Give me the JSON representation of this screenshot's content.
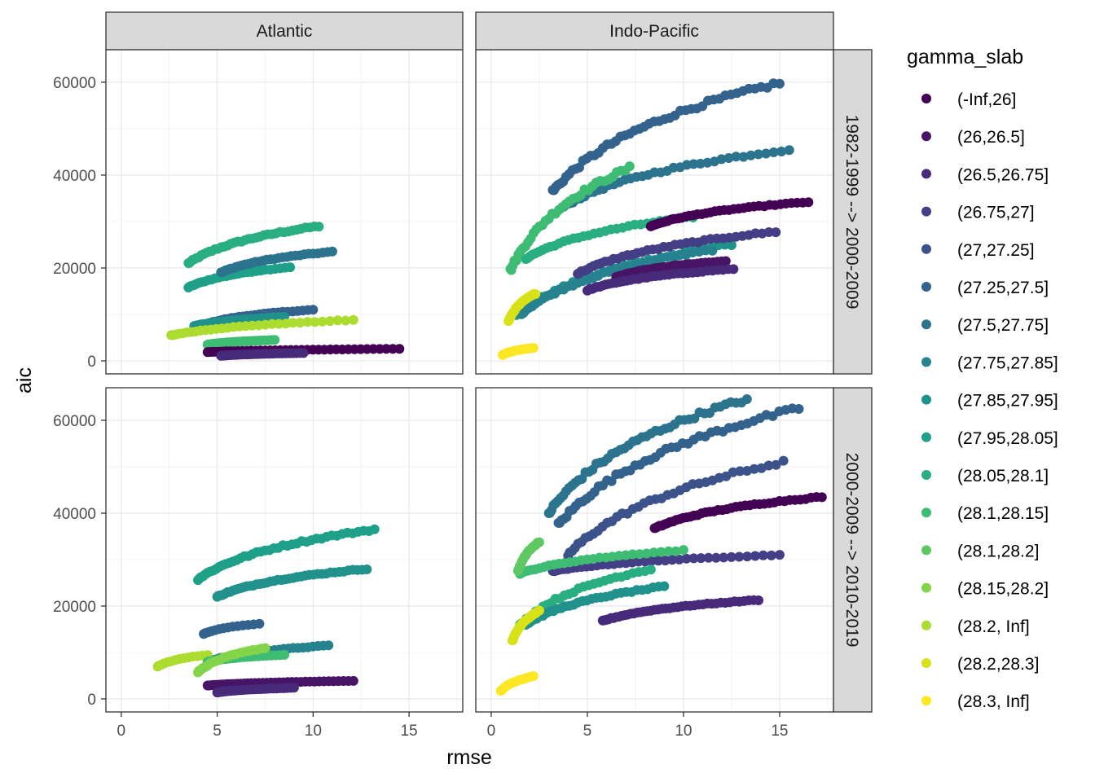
{
  "chart_data": {
    "type": "scatter",
    "xlabel": "rmse",
    "ylabel": "aic",
    "xlim": [
      -0.8,
      17.8
    ],
    "ylim": [
      -2800,
      67000
    ],
    "x_ticks": [
      0,
      5,
      10,
      15
    ],
    "y_ticks": [
      0,
      20000,
      40000,
      60000
    ],
    "grid": true,
    "legend_position": "right",
    "facet_columns": [
      "Atlantic",
      "Indo-Pacific"
    ],
    "facet_rows": [
      "1982-1999 --> 2000-2009",
      "2000-2009 --> 2010-2019"
    ],
    "legend": {
      "title": "gamma_slab",
      "items": [
        {
          "label": "(-Inf,26]",
          "color": "#440154"
        },
        {
          "label": "(26,26.5]",
          "color": "#471466"
        },
        {
          "label": "(26.5,26.75]",
          "color": "#472A7A"
        },
        {
          "label": "(26.75,27]",
          "color": "#433E85"
        },
        {
          "label": "(27,27.25]",
          "color": "#3B528B"
        },
        {
          "label": "(27.25,27.5]",
          "color": "#33638D"
        },
        {
          "label": "(27.5,27.75]",
          "color": "#2C738E"
        },
        {
          "label": "(27.75,27.85]",
          "color": "#26828E"
        },
        {
          "label": "(27.85,27.95]",
          "color": "#21918C"
        },
        {
          "label": "(27.95,28.05]",
          "color": "#1FA088"
        },
        {
          "label": "(28.05,28.1]",
          "color": "#28AE80"
        },
        {
          "label": "(28.1,28.15]",
          "color": "#3FBC73"
        },
        {
          "label": "(28.1,28.2]",
          "color": "#5EC962"
        },
        {
          "label": "(28.15,28.2]",
          "color": "#84D44B"
        },
        {
          "label": "(28.2, Inf]",
          "color": "#ADDC30"
        },
        {
          "label": "(28.2,28.3]",
          "color": "#D8E219"
        },
        {
          "label": "(28.3, Inf]",
          "color": "#FDE725"
        }
      ]
    },
    "panels": [
      {
        "column": "Atlantic",
        "row": "1982-1999 --> 2000-2009",
        "series": [
          {
            "group": "(28.05,28.1]",
            "shape": "log",
            "x0": 3.5,
            "x1": 10.3,
            "y0": 21000,
            "y1": 29000,
            "n": 40
          },
          {
            "group": "(27.95,28.05]",
            "shape": "log",
            "x0": 3.5,
            "x1": 8.8,
            "y0": 15800,
            "y1": 20200,
            "n": 28
          },
          {
            "group": "(27.5,27.75]",
            "shape": "log",
            "x0": 5.2,
            "x1": 11.0,
            "y0": 19000,
            "y1": 23500,
            "n": 32
          },
          {
            "group": "(27.25,27.5]",
            "shape": "log",
            "x0": 4.5,
            "x1": 10.0,
            "y0": 8000,
            "y1": 11000,
            "n": 28
          },
          {
            "group": "(27.85,27.95]",
            "shape": "log",
            "x0": 3.8,
            "x1": 8.5,
            "y0": 7500,
            "y1": 9500,
            "n": 22
          },
          {
            "group": "(28.2, Inf]",
            "shape": "log",
            "x0": 2.6,
            "x1": 12.1,
            "y0": 5500,
            "y1": 8800,
            "n": 32
          },
          {
            "group": "(28.1,28.15]",
            "shape": "log",
            "x0": 4.5,
            "x1": 8.0,
            "y0": 3500,
            "y1": 4500,
            "n": 26
          },
          {
            "group": "(-Inf,26]",
            "shape": "log",
            "x0": 4.5,
            "x1": 14.5,
            "y0": 1900,
            "y1": 2600,
            "n": 40
          },
          {
            "group": "(26.5,26.75]",
            "shape": "log",
            "x0": 5.2,
            "x1": 9.5,
            "y0": 1100,
            "y1": 1700,
            "n": 32
          }
        ]
      },
      {
        "column": "Indo-Pacific",
        "row": "1982-1999 --> 2000-2009",
        "series": [
          {
            "group": "(27.25,27.5]",
            "shape": "log",
            "x0": 3.2,
            "x1": 15.0,
            "y0": 36500,
            "y1": 59800,
            "n": 50
          },
          {
            "group": "(27.5,27.75]",
            "shape": "log",
            "x0": 3.7,
            "x1": 15.5,
            "y0": 33000,
            "y1": 45500,
            "n": 40
          },
          {
            "group": "(28.1,28.15]",
            "shape": "log",
            "x0": 1.0,
            "x1": 7.2,
            "y0": 19500,
            "y1": 41500,
            "n": 38
          },
          {
            "group": "(28.05,28.1]",
            "shape": "log",
            "x0": 1.8,
            "x1": 10.5,
            "y0": 22000,
            "y1": 31000,
            "n": 34
          },
          {
            "group": "(27.85,27.95]",
            "shape": "log",
            "x0": 1.3,
            "x1": 12.5,
            "y0": 9800,
            "y1": 25200,
            "n": 44
          },
          {
            "group": "(27.75,27.85]",
            "shape": "log",
            "x0": 1.5,
            "x1": 11.5,
            "y0": 10000,
            "y1": 24000,
            "n": 40
          },
          {
            "group": "(26.75,27]",
            "shape": "log",
            "x0": 4.5,
            "x1": 14.8,
            "y0": 18800,
            "y1": 27800,
            "n": 40
          },
          {
            "group": "(-Inf,26]",
            "shape": "log",
            "x0": 8.3,
            "x1": 16.5,
            "y0": 29000,
            "y1": 34200,
            "n": 38
          },
          {
            "group": "(26,26.5]",
            "shape": "log",
            "x0": 6.5,
            "x1": 12.2,
            "y0": 18000,
            "y1": 21500,
            "n": 36
          },
          {
            "group": "(26.5,26.75]",
            "shape": "log",
            "x0": 5.0,
            "x1": 12.6,
            "y0": 15200,
            "y1": 19800,
            "n": 38
          },
          {
            "group": "(28.2,28.3]",
            "shape": "log",
            "x0": 0.9,
            "x1": 2.3,
            "y0": 8500,
            "y1": 14500,
            "n": 22
          },
          {
            "group": "(28.3, Inf]",
            "shape": "log",
            "x0": 0.6,
            "x1": 2.2,
            "y0": 1300,
            "y1": 2800,
            "n": 16
          }
        ]
      },
      {
        "column": "Atlantic",
        "row": "2000-2009 --> 2010-2019",
        "series": [
          {
            "group": "(27.95,28.05]",
            "shape": "log",
            "x0": 4.0,
            "x1": 13.2,
            "y0": 25800,
            "y1": 36500,
            "n": 44
          },
          {
            "group": "(27.85,27.95]",
            "shape": "log",
            "x0": 5.0,
            "x1": 12.8,
            "y0": 22000,
            "y1": 28000,
            "n": 44
          },
          {
            "group": "(27.25,27.5]",
            "shape": "log",
            "x0": 4.3,
            "x1": 7.2,
            "y0": 14000,
            "y1": 16200,
            "n": 14
          },
          {
            "group": "(27.75,27.85]",
            "shape": "log",
            "x0": 4.5,
            "x1": 10.8,
            "y0": 8000,
            "y1": 11500,
            "n": 32
          },
          {
            "group": "(28.2, Inf]",
            "shape": "log",
            "x0": 1.9,
            "x1": 4.5,
            "y0": 7000,
            "y1": 9500,
            "n": 14
          },
          {
            "group": "(28.1,28.15]",
            "shape": "log",
            "x0": 4.5,
            "x1": 8.5,
            "y0": 8000,
            "y1": 9500,
            "n": 24
          },
          {
            "group": "(28.15,28.2]",
            "shape": "log",
            "x0": 4.0,
            "x1": 7.5,
            "y0": 5800,
            "y1": 11000,
            "n": 22
          },
          {
            "group": "(26,26.5]",
            "shape": "log",
            "x0": 4.5,
            "x1": 12.1,
            "y0": 2900,
            "y1": 3900,
            "n": 40
          },
          {
            "group": "(26.5,26.75]",
            "shape": "log",
            "x0": 5.0,
            "x1": 9.0,
            "y0": 1400,
            "y1": 2400,
            "n": 30
          }
        ]
      },
      {
        "column": "Indo-Pacific",
        "row": "2000-2009 --> 2010-2019",
        "series": [
          {
            "group": "(27.5,27.75]",
            "shape": "log",
            "x0": 3.0,
            "x1": 13.3,
            "y0": 40000,
            "y1": 64500,
            "n": 50
          },
          {
            "group": "(27.25,27.5]",
            "shape": "log",
            "x0": 3.5,
            "x1": 16.0,
            "y0": 37500,
            "y1": 62500,
            "n": 50
          },
          {
            "group": "(27,27.25]",
            "shape": "log",
            "x0": 4.0,
            "x1": 15.2,
            "y0": 31000,
            "y1": 51000,
            "n": 40
          },
          {
            "group": "(26.75,27]",
            "shape": "log",
            "x0": 3.2,
            "x1": 15.0,
            "y0": 27500,
            "y1": 31000,
            "n": 38
          },
          {
            "group": "(28.1,28.15]",
            "shape": "log",
            "x0": 1.5,
            "x1": 10.0,
            "y0": 27000,
            "y1": 32000,
            "n": 30
          },
          {
            "group": "(28.1,28.2]",
            "shape": "log",
            "x0": 1.4,
            "x1": 2.5,
            "y0": 27500,
            "y1": 33800,
            "n": 16
          },
          {
            "group": "(-Inf,26]",
            "shape": "log",
            "x0": 8.5,
            "x1": 17.2,
            "y0": 36700,
            "y1": 43500,
            "n": 42
          },
          {
            "group": "(28.05,28.1]",
            "shape": "log",
            "x0": 1.5,
            "x1": 8.3,
            "y0": 15800,
            "y1": 28000,
            "n": 30
          },
          {
            "group": "(27.85,27.95]",
            "shape": "log",
            "x0": 1.8,
            "x1": 9.0,
            "y0": 16000,
            "y1": 24200,
            "n": 34
          },
          {
            "group": "(26.5,26.75]",
            "shape": "log",
            "x0": 5.8,
            "x1": 13.9,
            "y0": 16800,
            "y1": 21300,
            "n": 44
          },
          {
            "group": "(28.2,28.3]",
            "shape": "log",
            "x0": 1.1,
            "x1": 2.5,
            "y0": 12500,
            "y1": 19000,
            "n": 22
          },
          {
            "group": "(28.3, Inf]",
            "shape": "log",
            "x0": 0.5,
            "x1": 2.2,
            "y0": 1700,
            "y1": 4900,
            "n": 16
          }
        ]
      }
    ]
  }
}
